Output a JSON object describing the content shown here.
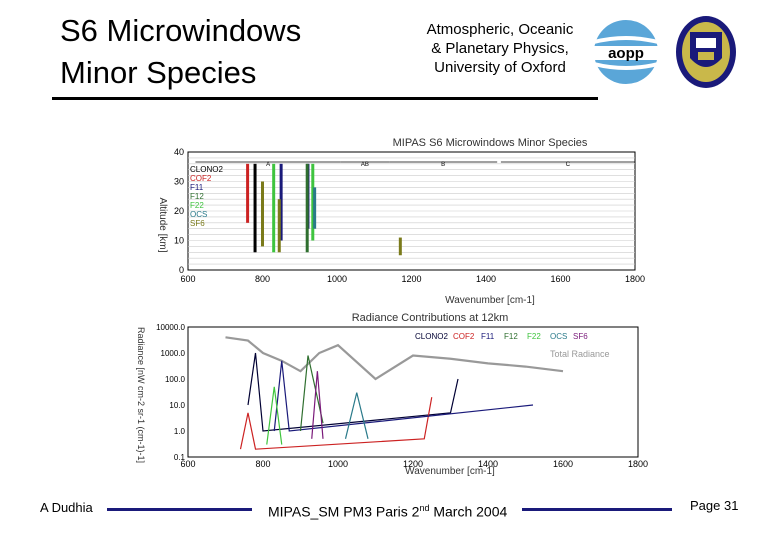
{
  "header": {
    "title_line1": "S6 Microwindows",
    "title_line2": "Minor Species",
    "institution_line1": "Atmospheric, Oceanic",
    "institution_line2": "& Planetary Physics,",
    "institution_line3": "University of Oxford",
    "aopp_logo_text": "aopp"
  },
  "footer": {
    "author": "A Dudhia",
    "event_prefix": "MIPAS_SM PM3 Paris 2",
    "event_sup": "nd",
    "event_suffix": " March 2004",
    "page": "Page 31"
  },
  "colors": {
    "accent": "#1a1a7a"
  },
  "chart_data": [
    {
      "type": "bar",
      "title": "MIPAS S6 Microwindows Minor Species",
      "xlabel": "Wavenumber [cm-1]",
      "ylabel": "Altitude [km]",
      "xlim": [
        600,
        1800
      ],
      "ylim": [
        0,
        40
      ],
      "xticks": [
        "600",
        "800",
        "1000",
        "1200",
        "1400",
        "1600",
        "1800"
      ],
      "yticks": [
        "0",
        "10",
        "20",
        "30",
        "40"
      ],
      "band_labels": [
        "A",
        "AB",
        "B",
        "C"
      ],
      "legend": [
        "CLONO2",
        "COF2",
        "F11",
        "F12",
        "F22",
        "OCS",
        "SF6"
      ],
      "series": [
        {
          "name": "CLONO2",
          "color": "#000000",
          "x": [
            780
          ],
          "ymin": [
            6
          ],
          "ymax": [
            36
          ]
        },
        {
          "name": "COF2",
          "color": "#cc2222",
          "x": [
            760
          ],
          "ymin": [
            16
          ],
          "ymax": [
            36
          ]
        },
        {
          "name": "F11",
          "color": "#1a1a7a",
          "x": [
            850,
            922
          ],
          "ymin": [
            10,
            14
          ],
          "ymax": [
            36,
            36
          ]
        },
        {
          "name": "F12",
          "color": "#2f6f2f",
          "x": [
            920
          ],
          "ymin": [
            6
          ],
          "ymax": [
            36
          ]
        },
        {
          "name": "F22",
          "color": "#3ec43e",
          "x": [
            830,
            935
          ],
          "ymin": [
            6,
            10
          ],
          "ymax": [
            36,
            36
          ]
        },
        {
          "name": "OCS",
          "color": "#2a7a8a",
          "x": [
            940
          ],
          "ymin": [
            14
          ],
          "ymax": [
            28
          ]
        },
        {
          "name": "SF6",
          "color": "#7a7a1a",
          "x": [
            800,
            845,
            1170
          ],
          "ymin": [
            8,
            6,
            5
          ],
          "ymax": [
            30,
            24,
            11
          ]
        }
      ]
    },
    {
      "type": "line",
      "title": "Radiance Contributions at 12km",
      "xlabel": "Wavenumber [cm-1]",
      "ylabel": "Radiance [nW cm-2 sr-1 (cm-1)-1]",
      "xlim": [
        600,
        1800
      ],
      "ylim_log": [
        0.1,
        10000
      ],
      "xticks": [
        "600",
        "800",
        "1000",
        "1200",
        "1400",
        "1600",
        "1800"
      ],
      "yticks": [
        "0.1",
        "1.0",
        "10.0",
        "100.0",
        "1000.0",
        "10000.0"
      ],
      "legend": [
        "CLONO2",
        "COF2",
        "F11",
        "F12",
        "F22",
        "OCS",
        "SF6"
      ],
      "legend_total": "Total Radiance",
      "series": [
        {
          "name": "Total Radiance",
          "color": "#999999",
          "x": [
            700,
            760,
            800,
            850,
            900,
            950,
            1000,
            1100,
            1200,
            1300,
            1400,
            1500,
            1600
          ],
          "y": [
            4000,
            3000,
            1000,
            500,
            200,
            1000,
            2000,
            100,
            800,
            600,
            400,
            300,
            200
          ]
        },
        {
          "name": "CLONO2",
          "color": "#000033",
          "x": [
            760,
            780,
            800,
            1300,
            1320
          ],
          "y": [
            10,
            1000,
            1,
            5,
            100
          ]
        },
        {
          "name": "COF2",
          "color": "#cc2222",
          "x": [
            740,
            760,
            780,
            1230,
            1250
          ],
          "y": [
            0.2,
            5,
            0.2,
            0.5,
            20
          ]
        },
        {
          "name": "F11",
          "color": "#1a1a7a",
          "x": [
            830,
            850,
            870,
            1520
          ],
          "y": [
            1,
            500,
            1,
            10
          ]
        },
        {
          "name": "F12",
          "color": "#2f6f2f",
          "x": [
            900,
            920,
            960
          ],
          "y": [
            1,
            800,
            2
          ]
        },
        {
          "name": "F22",
          "color": "#3ec43e",
          "x": [
            810,
            830,
            850
          ],
          "y": [
            0.3,
            50,
            0.3
          ]
        },
        {
          "name": "OCS",
          "color": "#2a7a8a",
          "x": [
            1020,
            1050,
            1080
          ],
          "y": [
            0.5,
            30,
            0.5
          ]
        },
        {
          "name": "SF6",
          "color": "#7a1a7a",
          "x": [
            930,
            945,
            960
          ],
          "y": [
            0.5,
            200,
            0.5
          ]
        }
      ]
    }
  ]
}
